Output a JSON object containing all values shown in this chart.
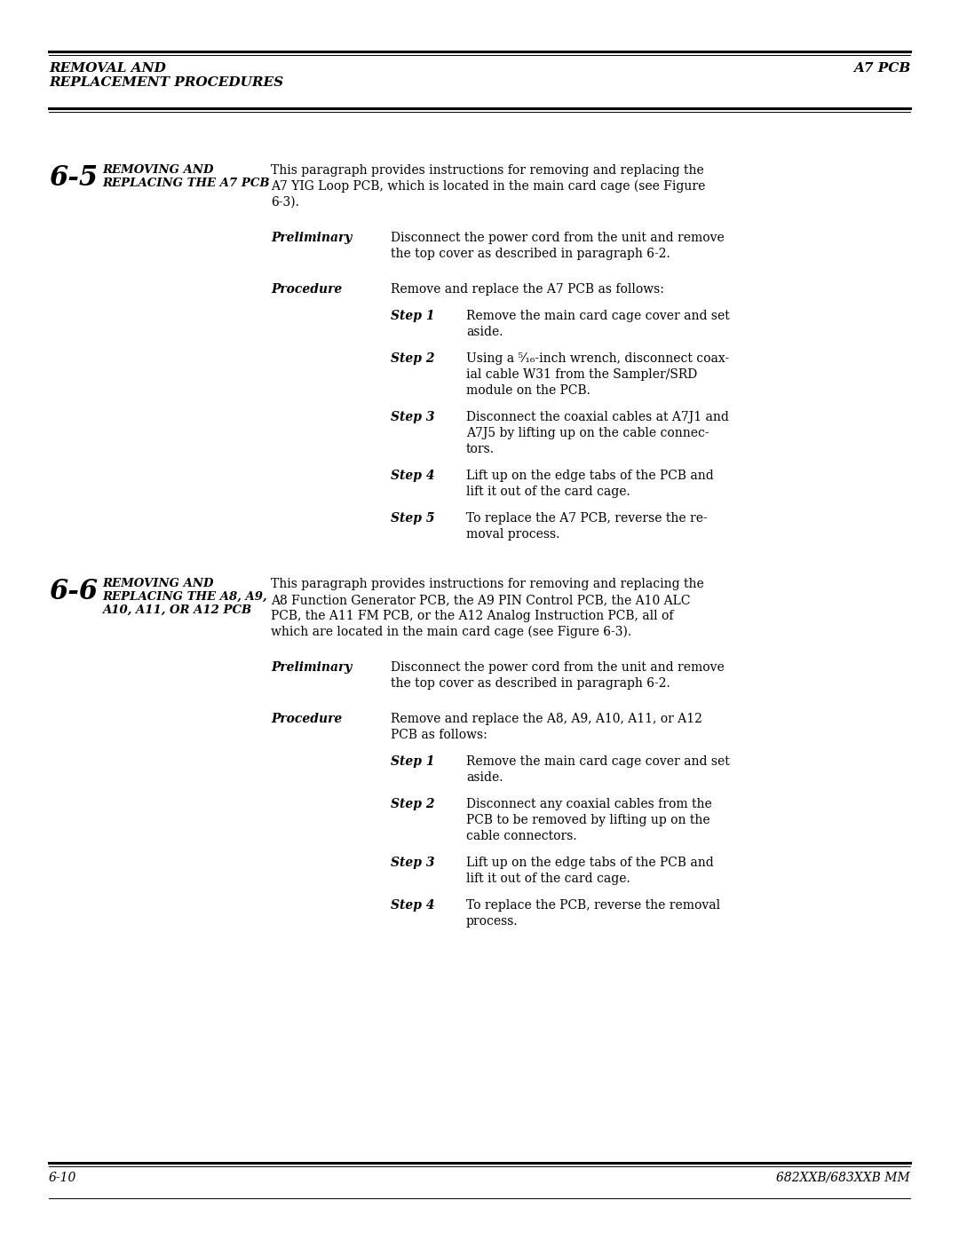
{
  "header_left": "REMOVAL AND\nREPLACEMENT PROCEDURES",
  "header_right": "A7 PCB",
  "footer_left": "6-10",
  "footer_right": "682XXB/683XXB MM",
  "section1_num": "6-5",
  "section1_title": "REMOVING AND\nREPLACING THE A7 PCB",
  "section1_intro_lines": [
    "This paragraph provides instructions for removing and replacing the",
    "A7 YIG Loop PCB, which is located in the main card cage (see Figure",
    "6-3)."
  ],
  "section1_preliminary_label": "Preliminary",
  "section1_preliminary_lines": [
    "Disconnect the power cord from the unit and remove",
    "the top cover as described in paragraph 6-2."
  ],
  "section1_procedure_label": "Procedure",
  "section1_procedure_line": "Remove and replace the A7 PCB as follows:",
  "section1_steps": [
    [
      "Step 1",
      [
        "Remove the main card cage cover and set",
        "aside."
      ]
    ],
    [
      "Step 2",
      [
        "Using a ⁵⁄₁₆-inch wrench, disconnect coax-",
        "ial cable W31 from the Sampler/SRD",
        "module on the PCB."
      ]
    ],
    [
      "Step 3",
      [
        "Disconnect the coaxial cables at A7J1 and",
        "A7J5 by lifting up on the cable connec-",
        "tors."
      ]
    ],
    [
      "Step 4",
      [
        "Lift up on the edge tabs of the PCB and",
        "lift it out of the card cage."
      ]
    ],
    [
      "Step 5",
      [
        "To replace the A7 PCB, reverse the re-",
        "moval process."
      ]
    ]
  ],
  "section2_num": "6-6",
  "section2_title": "REMOVING AND\nREPLACING THE A8, A9,\nA10, A11, OR A12 PCB",
  "section2_intro_lines": [
    "This paragraph provides instructions for removing and replacing the",
    "A8 Function Generator PCB, the A9 PIN Control PCB, the A10 ALC",
    "PCB, the A11 FM PCB, or the A12 Analog Instruction PCB, all of",
    "which are located in the main card cage (see Figure 6-3)."
  ],
  "section2_preliminary_label": "Preliminary",
  "section2_preliminary_lines": [
    "Disconnect the power cord from the unit and remove",
    "the top cover as described in paragraph 6-2."
  ],
  "section2_procedure_label": "Procedure",
  "section2_procedure_lines": [
    "Remove and replace the A8, A9, A10, A11, or A12",
    "PCB as follows:"
  ],
  "section2_steps": [
    [
      "Step 1",
      [
        "Remove the main card cage cover and set",
        "aside."
      ]
    ],
    [
      "Step 2",
      [
        "Disconnect any coaxial cables from the",
        "PCB to be removed by lifting up on the",
        "cable connectors."
      ]
    ],
    [
      "Step 3",
      [
        "Lift up on the edge tabs of the PCB and",
        "lift it out of the card cage."
      ]
    ],
    [
      "Step 4",
      [
        "To replace the PCB, reverse the removal",
        "process."
      ]
    ]
  ],
  "bg_color": "#ffffff",
  "dpi": 100,
  "fig_w": 10.8,
  "fig_h": 13.97
}
